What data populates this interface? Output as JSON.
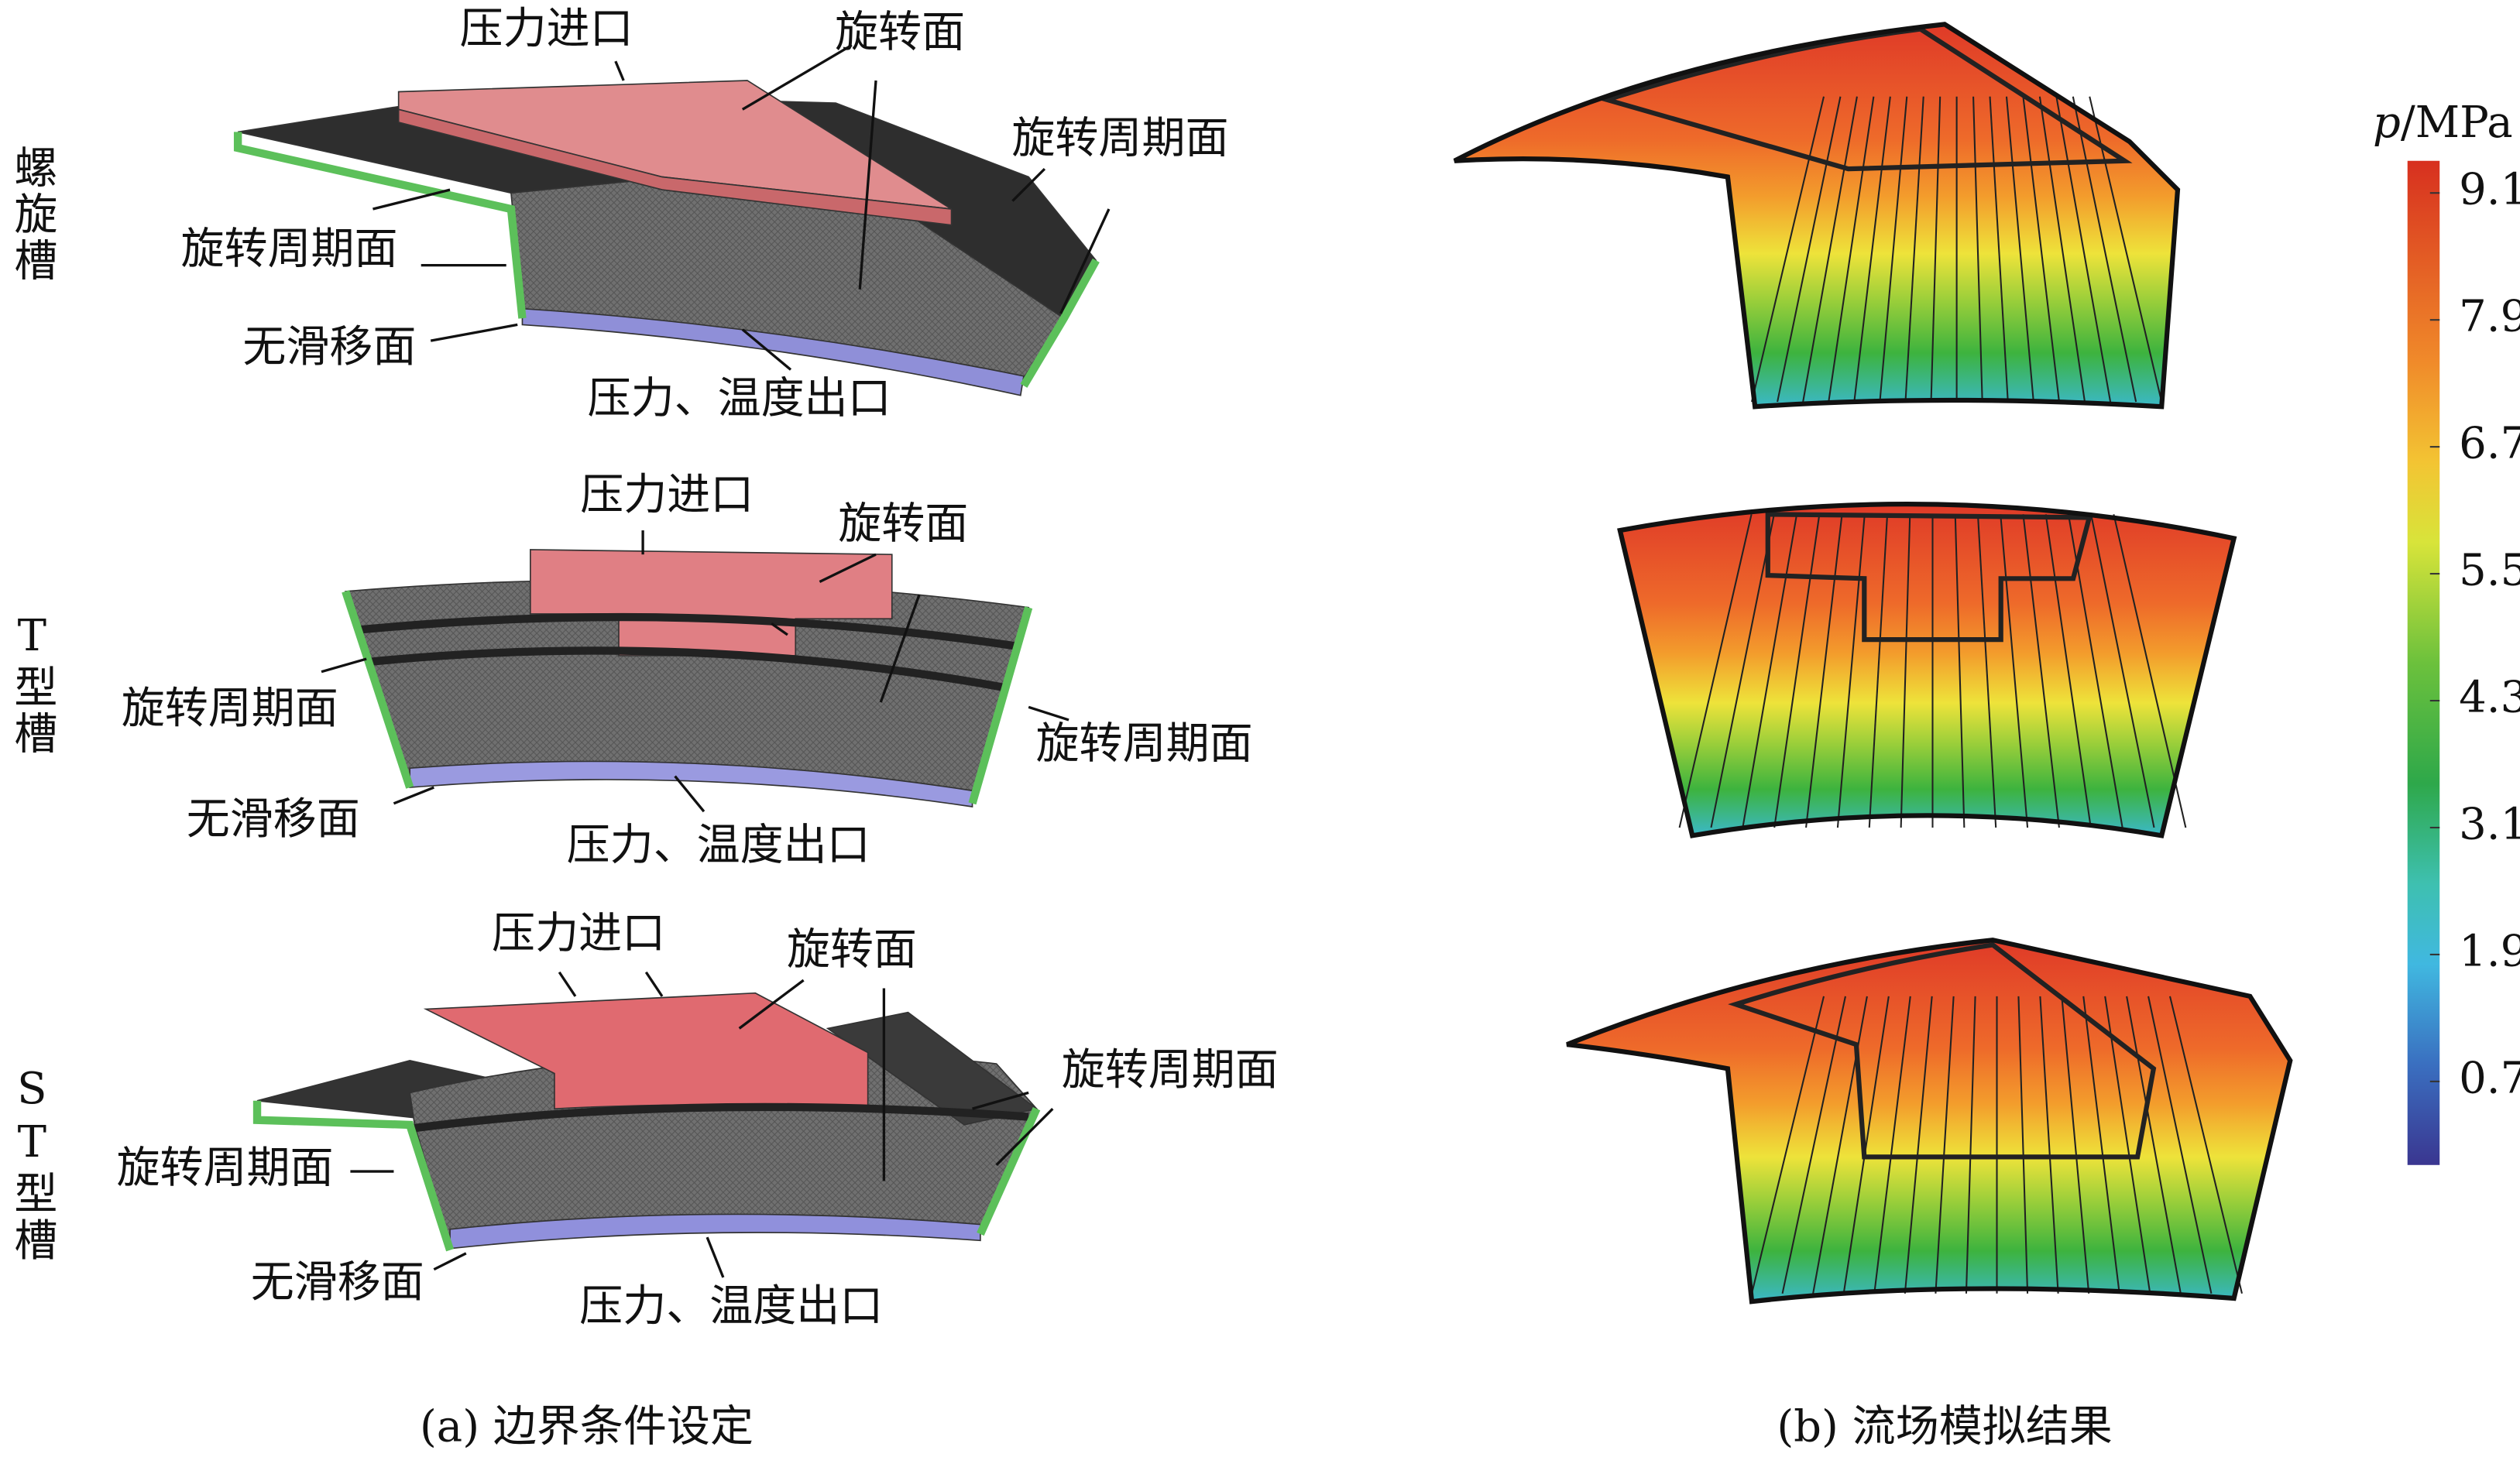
{
  "panel_a": {
    "caption": "(a) 边界条件设定",
    "rows": [
      {
        "label": "螺旋槽",
        "callouts": [
          "压力进口",
          "旋转面",
          "旋转周期面",
          "旋转周期面",
          "无滑移面",
          "压力、温度出口"
        ]
      },
      {
        "label": "T型槽",
        "callouts": [
          "压力进口",
          "旋转面",
          "旋转周期面",
          "旋转周期面",
          "无滑移面",
          "压力、温度出口"
        ]
      },
      {
        "label": "ST型槽",
        "callouts": [
          "压力进口",
          "旋转面",
          "旋转周期面",
          "旋转周期面",
          "无滑移面",
          "压力、温度出口"
        ]
      }
    ]
  },
  "panel_b": {
    "caption": "(b) 流场模拟结果",
    "colorbar": {
      "symbol": "p",
      "unit": "/MPa",
      "ticks": [
        9.1,
        7.9,
        6.7,
        5.5,
        4.3,
        3.1,
        1.9,
        0.7
      ]
    }
  }
}
